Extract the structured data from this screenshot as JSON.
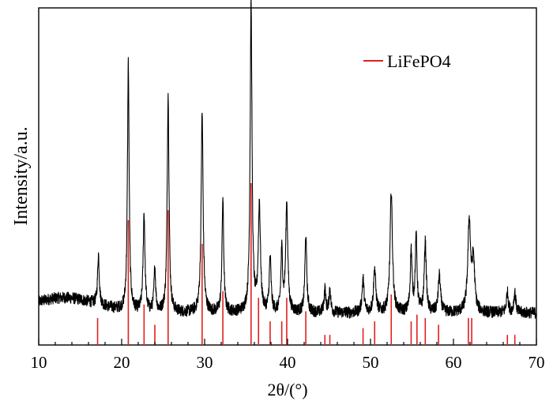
{
  "chart_data": {
    "type": "line",
    "xlabel": "2θ/(°)",
    "ylabel": "Intensity/a.u.",
    "xlim": [
      10,
      70
    ],
    "ylim": [
      0,
      100
    ],
    "x_ticks": [
      10,
      20,
      30,
      40,
      50,
      60,
      70
    ],
    "y_ticks_labeled": false,
    "grid": false,
    "legend": {
      "placement": "top-right",
      "entries": [
        "LiFePO4"
      ]
    },
    "series": [
      {
        "name": "LiFePO4",
        "style": "reference-sticks",
        "color": "#e02020",
        "x": [
          17.1,
          20.8,
          22.7,
          24.0,
          25.6,
          29.7,
          32.2,
          35.6,
          36.5,
          37.9,
          39.3,
          39.9,
          42.2,
          44.5,
          45.1,
          49.1,
          50.5,
          52.5,
          54.9,
          55.6,
          56.6,
          58.2,
          61.8,
          62.2,
          66.5,
          67.4
        ],
        "values": [
          8,
          37,
          12,
          6,
          40,
          30,
          16,
          48,
          14,
          7,
          7,
          14,
          10,
          3,
          3,
          5,
          7,
          15,
          7,
          9,
          8,
          6,
          8,
          8,
          3,
          3
        ]
      },
      {
        "name": "",
        "style": "pattern",
        "color": "#000000",
        "baseline": 9.5,
        "peaks": [
          {
            "x": 17.2,
            "h": 15,
            "w": 0.12
          },
          {
            "x": 20.8,
            "h": 74,
            "w": 0.12
          },
          {
            "x": 22.7,
            "h": 29,
            "w": 0.13
          },
          {
            "x": 24.0,
            "h": 13,
            "w": 0.12
          },
          {
            "x": 25.6,
            "h": 65,
            "w": 0.13
          },
          {
            "x": 29.7,
            "h": 59,
            "w": 0.14
          },
          {
            "x": 32.2,
            "h": 34,
            "w": 0.12
          },
          {
            "x": 35.6,
            "h": 93,
            "w": 0.13
          },
          {
            "x": 36.6,
            "h": 32,
            "w": 0.15
          },
          {
            "x": 37.9,
            "h": 16,
            "w": 0.13
          },
          {
            "x": 39.3,
            "h": 18,
            "w": 0.12
          },
          {
            "x": 39.9,
            "h": 32,
            "w": 0.15
          },
          {
            "x": 42.2,
            "h": 23,
            "w": 0.13
          },
          {
            "x": 44.5,
            "h": 7,
            "w": 0.12
          },
          {
            "x": 45.1,
            "h": 7,
            "w": 0.12
          },
          {
            "x": 49.1,
            "h": 10,
            "w": 0.14
          },
          {
            "x": 50.5,
            "h": 13,
            "w": 0.16
          },
          {
            "x": 52.5,
            "h": 36,
            "w": 0.17
          },
          {
            "x": 54.9,
            "h": 18,
            "w": 0.13
          },
          {
            "x": 55.5,
            "h": 22,
            "w": 0.13
          },
          {
            "x": 56.6,
            "h": 21,
            "w": 0.14
          },
          {
            "x": 58.3,
            "h": 11,
            "w": 0.16
          },
          {
            "x": 61.9,
            "h": 27,
            "w": 0.2
          },
          {
            "x": 62.4,
            "h": 15,
            "w": 0.18
          },
          {
            "x": 66.5,
            "h": 6,
            "w": 0.14
          },
          {
            "x": 67.4,
            "h": 6,
            "w": 0.14
          }
        ]
      }
    ]
  }
}
